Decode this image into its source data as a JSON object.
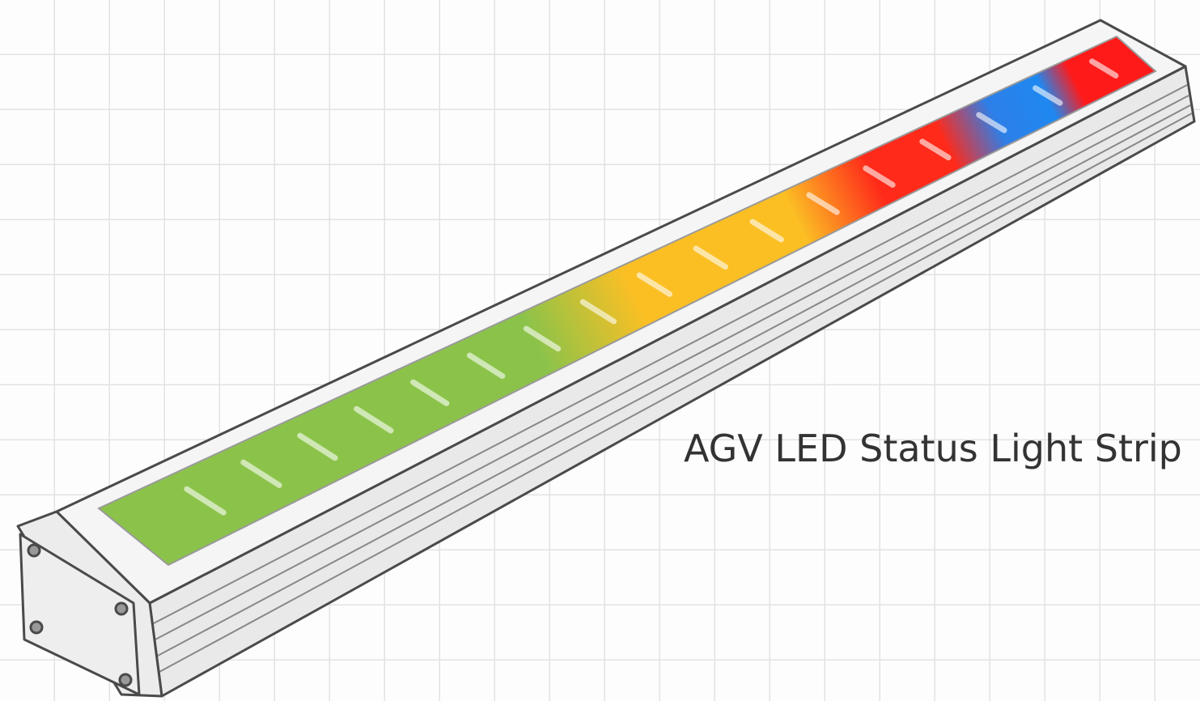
{
  "label": "AGV LED Status Light Strip"
}
